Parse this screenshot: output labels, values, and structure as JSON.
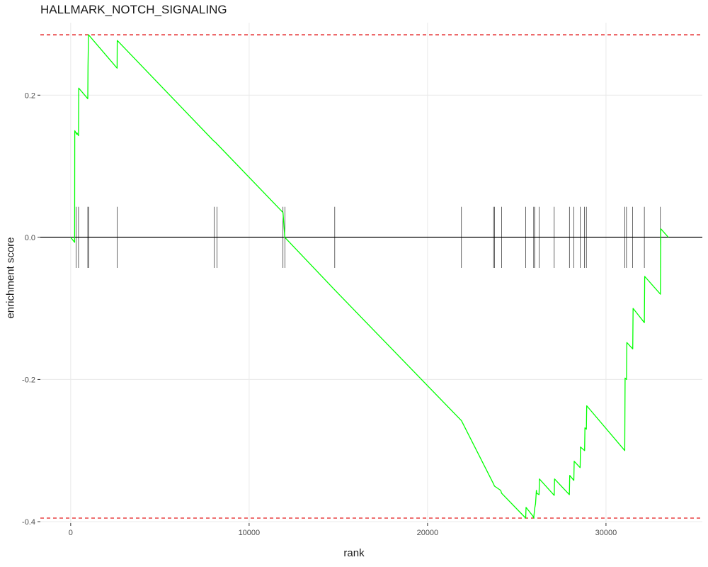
{
  "chart_data": {
    "type": "line",
    "title": "HALLMARK_NOTCH_SIGNALING",
    "xlabel": "rank",
    "ylabel": "enrichment score",
    "xlim": [
      -1700,
      35400
    ],
    "ylim": [
      -0.402,
      0.302
    ],
    "xticks": [
      0,
      10000,
      20000,
      30000
    ],
    "xtick_labels": [
      "0",
      "10000",
      "20000",
      "30000"
    ],
    "yticks": [
      -0.4,
      -0.2,
      0.0,
      0.2
    ],
    "ytick_labels": [
      "-0.4",
      "-0.2",
      "0.0",
      "0.2"
    ],
    "grid": true,
    "series": [
      {
        "color": "#00ff00",
        "x": [
          0,
          220,
          230,
          340,
          350,
          440,
          450,
          960,
          970,
          1000,
          2600,
          2610,
          8000,
          8100,
          11900,
          12000,
          14800,
          21900,
          23700,
          23750,
          24100,
          24150,
          25500,
          25520,
          25900,
          25950,
          26000,
          26050,
          26100,
          26120,
          26250,
          26270,
          27100,
          27120,
          27950,
          27970,
          28200,
          28220,
          28550,
          28570,
          28800,
          28820,
          28900,
          28920,
          31050,
          31070,
          31150,
          31170,
          31500,
          31520,
          32150,
          32170,
          33050,
          33070,
          33500
        ],
        "y": [
          0,
          -0.007,
          0.15,
          0.145,
          0.147,
          0.143,
          0.21,
          0.195,
          0.24,
          0.285,
          0.238,
          0.277,
          0.136,
          0.134,
          0.035,
          0.0,
          -0.074,
          -0.258,
          -0.347,
          -0.35,
          -0.356,
          -0.36,
          -0.395,
          -0.38,
          -0.392,
          -0.395,
          -0.382,
          -0.375,
          -0.356,
          -0.36,
          -0.362,
          -0.34,
          -0.363,
          -0.34,
          -0.362,
          -0.335,
          -0.342,
          -0.315,
          -0.324,
          -0.295,
          -0.3,
          -0.268,
          -0.27,
          -0.237,
          -0.3,
          -0.198,
          -0.2,
          -0.148,
          -0.157,
          -0.1,
          -0.12,
          -0.055,
          -0.08,
          0.012,
          0.0
        ]
      }
    ],
    "hlines": [
      {
        "y": 0.285,
        "color": "#e41a1c",
        "style": "dashed"
      },
      {
        "y": -0.395,
        "color": "#e41a1c",
        "style": "dashed"
      },
      {
        "y": 0.0,
        "color": "#000000",
        "style": "solid"
      }
    ],
    "rug": {
      "color": "#000000",
      "y_range": [
        -0.043,
        0.043
      ],
      "x": [
        300,
        440,
        960,
        1000,
        2600,
        8050,
        8200,
        11900,
        12000,
        14800,
        21900,
        23700,
        23750,
        24150,
        25500,
        25950,
        26000,
        26250,
        27100,
        27950,
        28200,
        28550,
        28800,
        28900,
        31050,
        31150,
        31500,
        32150,
        33050
      ]
    }
  }
}
